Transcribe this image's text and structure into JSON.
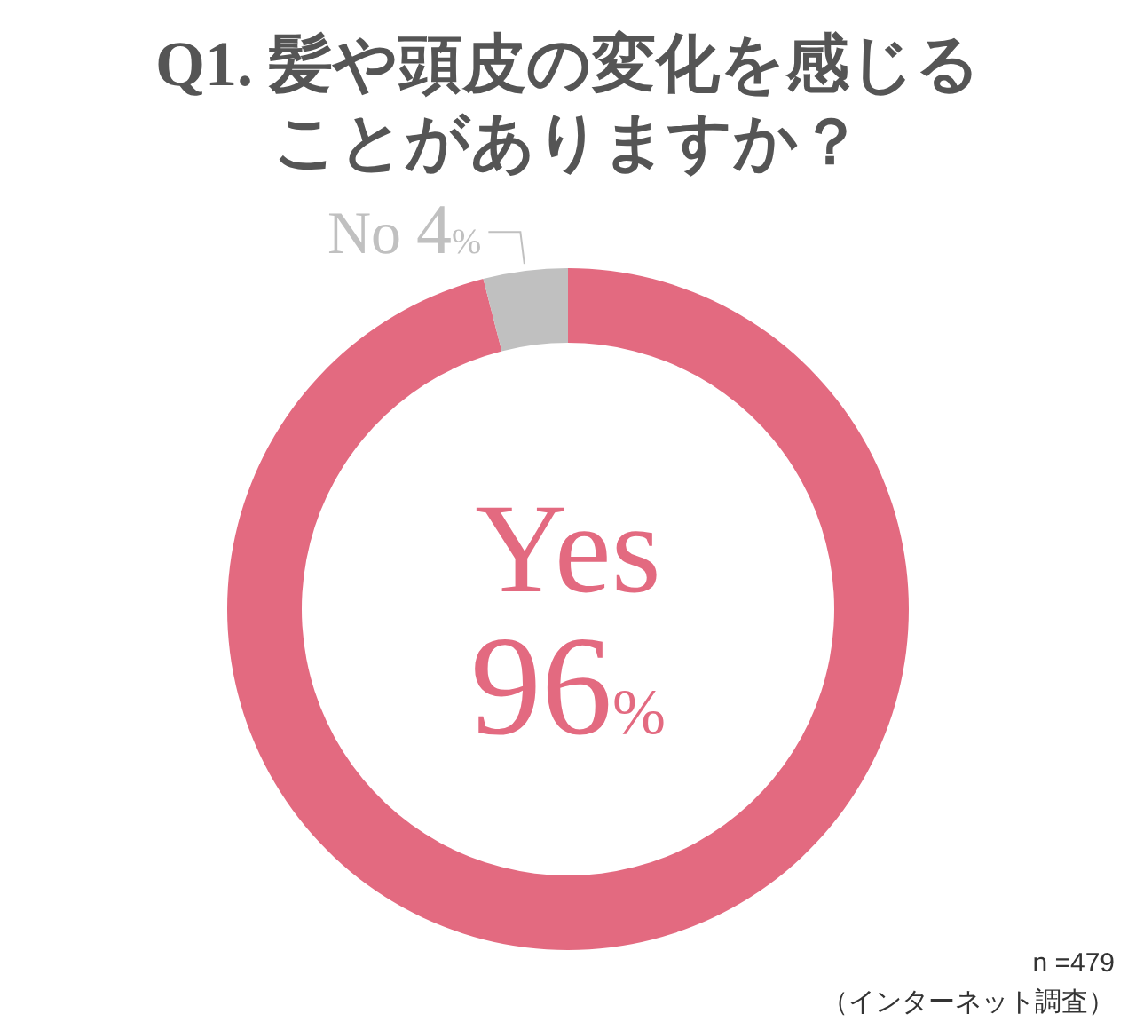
{
  "chart_data": {
    "type": "donut",
    "title": "Q1. 髪や頭皮の変化を感じることがありますか？",
    "categories": [
      "Yes",
      "No"
    ],
    "values": [
      96,
      4
    ],
    "colors": [
      "#e36a80",
      "#c0c0c0"
    ],
    "value_labels": [
      "96%",
      "4%"
    ],
    "annotations": [
      "n =479",
      "（インターネット調査）"
    ]
  }
}
